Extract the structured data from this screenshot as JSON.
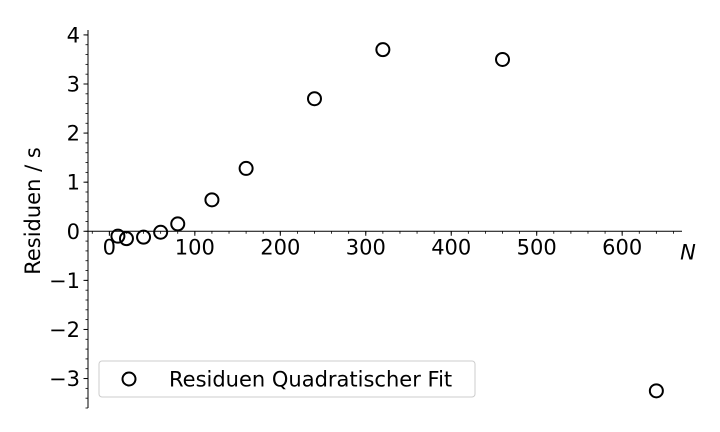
{
  "chart_data": {
    "type": "scatter",
    "xlabel": "N",
    "ylabel": "Residuen / s",
    "xlim": [
      -25,
      670
    ],
    "ylim": [
      -3.6,
      4.1
    ],
    "x_ticks": [
      0,
      100,
      200,
      300,
      400,
      500,
      600
    ],
    "y_ticks": [
      -3,
      -2,
      -1,
      0,
      1,
      2,
      3,
      4
    ],
    "x_tick_labels": [
      "0",
      "100",
      "200",
      "300",
      "400",
      "500",
      "600"
    ],
    "y_tick_labels": [
      "−3",
      "−2",
      "−1",
      "0",
      "1",
      "2",
      "3",
      "4"
    ],
    "x_minor_step": 20,
    "y_minor_step": 0.2,
    "grid": false,
    "legend_position": "lower-left",
    "series": [
      {
        "name": "Residuen Quadratischer Fit",
        "marker": "open-circle",
        "color": "#000000",
        "x": [
          10,
          20,
          40,
          60,
          80,
          120,
          160,
          240,
          320,
          460,
          640
        ],
        "y": [
          -0.1,
          -0.15,
          -0.12,
          -0.02,
          0.15,
          0.64,
          1.28,
          2.7,
          3.7,
          3.5,
          -3.25
        ]
      }
    ]
  }
}
